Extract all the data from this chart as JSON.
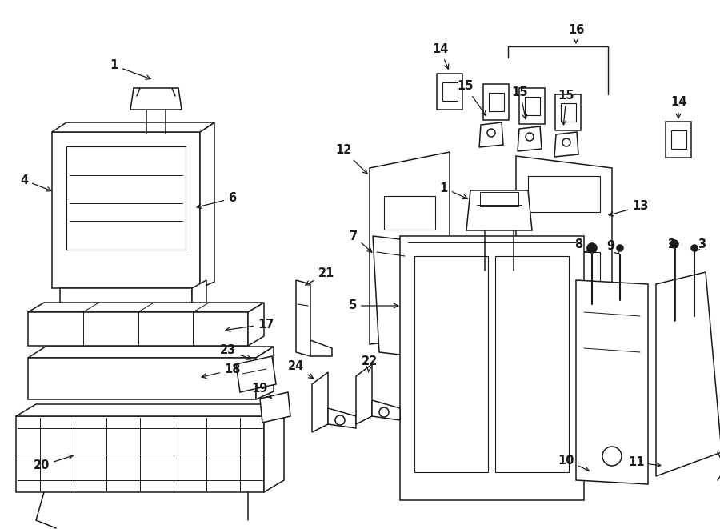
{
  "bg_color": "#ffffff",
  "line_color": "#1a1a1a",
  "fig_width": 9.0,
  "fig_height": 6.61,
  "dpi": 100,
  "lw": 1.1,
  "font_size": 10.5,
  "font_weight": "bold"
}
